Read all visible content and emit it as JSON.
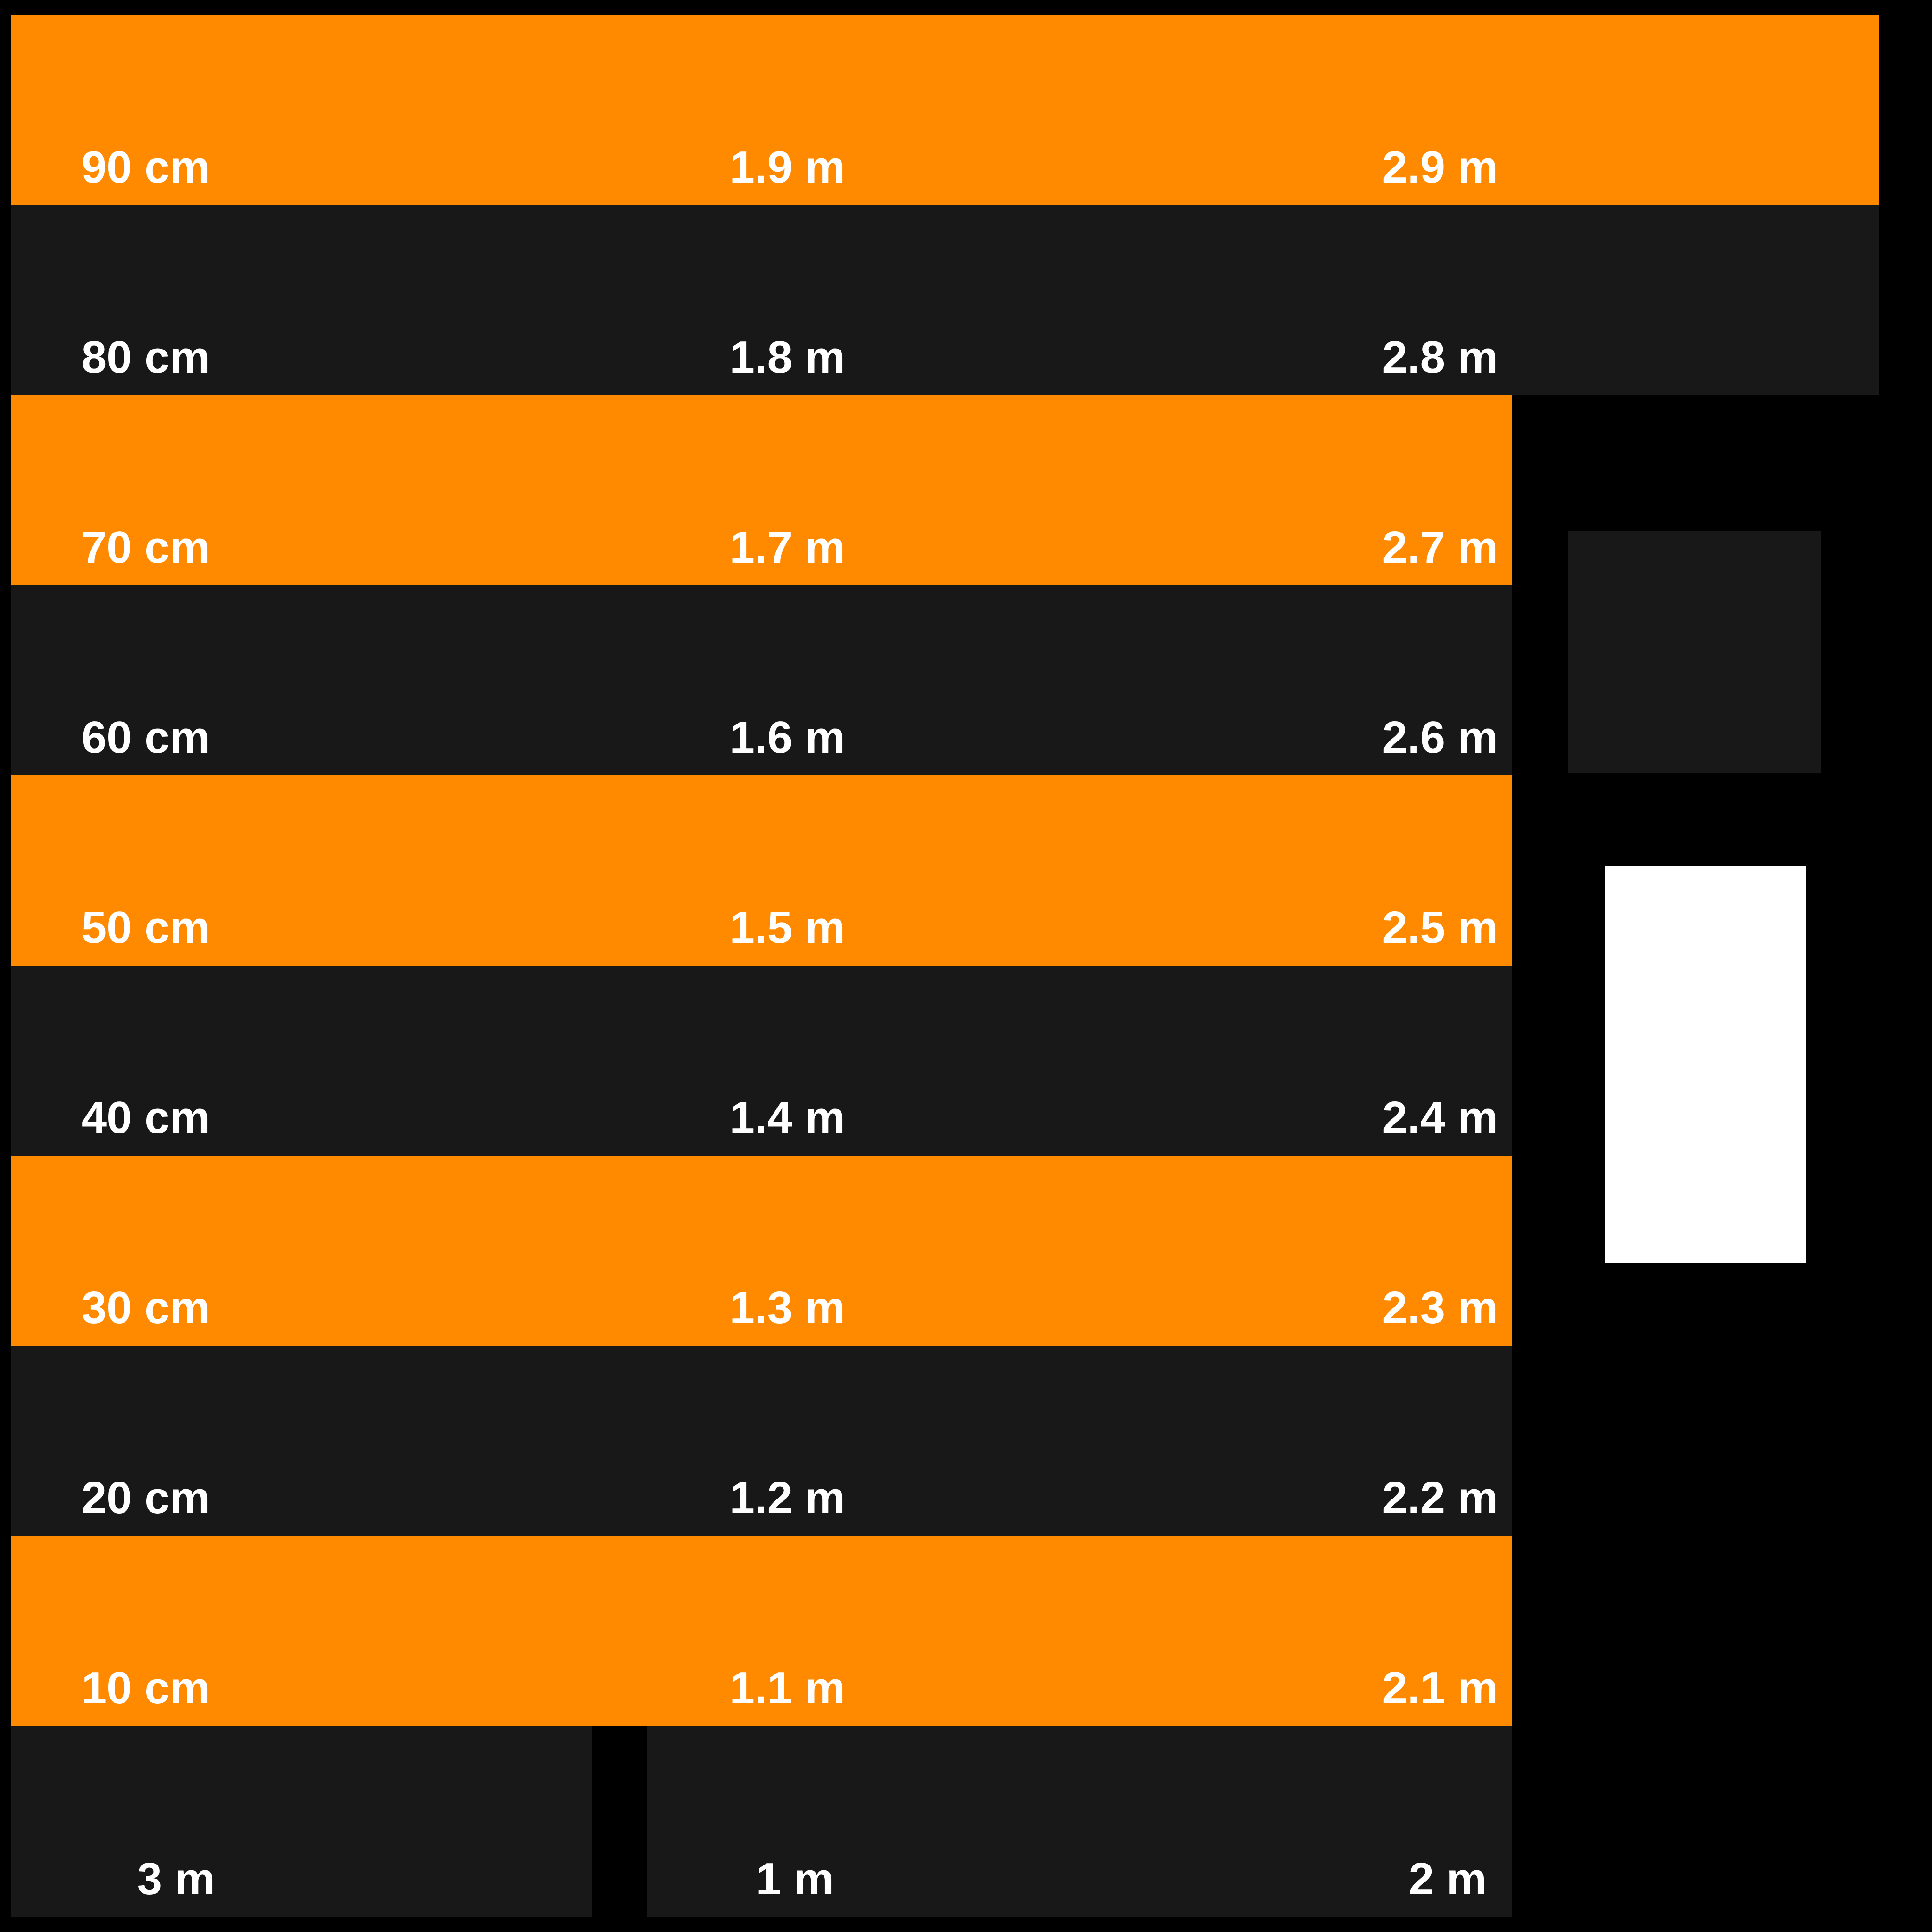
{
  "rows": [
    {
      "c1": "90 cm",
      "c2": "1.9 m",
      "c3": "2.9 m",
      "color": "#FF8A00"
    },
    {
      "c1": "80 cm",
      "c2": "1.8 m",
      "c3": "2.8 m",
      "color": "#181818"
    },
    {
      "c1": "70 cm",
      "c2": "1.7 m",
      "c3": "2.7 m",
      "color": "#FF8A00"
    },
    {
      "c1": "60 cm",
      "c2": "1.6 m",
      "c3": "2.6 m",
      "color": "#181818"
    },
    {
      "c1": "50 cm",
      "c2": "1.5 m",
      "c3": "2.5 m",
      "color": "#FF8A00"
    },
    {
      "c1": "40 cm",
      "c2": "1.4 m",
      "c3": "2.4 m",
      "color": "#181818"
    },
    {
      "c1": "30 cm",
      "c2": "1.3 m",
      "c3": "2.3 m",
      "color": "#FF8A00"
    },
    {
      "c1": "20 cm",
      "c2": "1.2 m",
      "c3": "2.2 m",
      "color": "#181818"
    },
    {
      "c1": "10 cm",
      "c2": "1.1 m",
      "c3": "2.1 m",
      "color": "#FF8A00"
    }
  ],
  "bottom": {
    "c1": "3 m",
    "c2": "1 m",
    "c3": "2 m"
  },
  "colors": {
    "background": "#000000",
    "orange": "#FF8A00",
    "dark": "#181818",
    "text": "#FFFFFF",
    "side_panel": "#FFFFFF"
  }
}
